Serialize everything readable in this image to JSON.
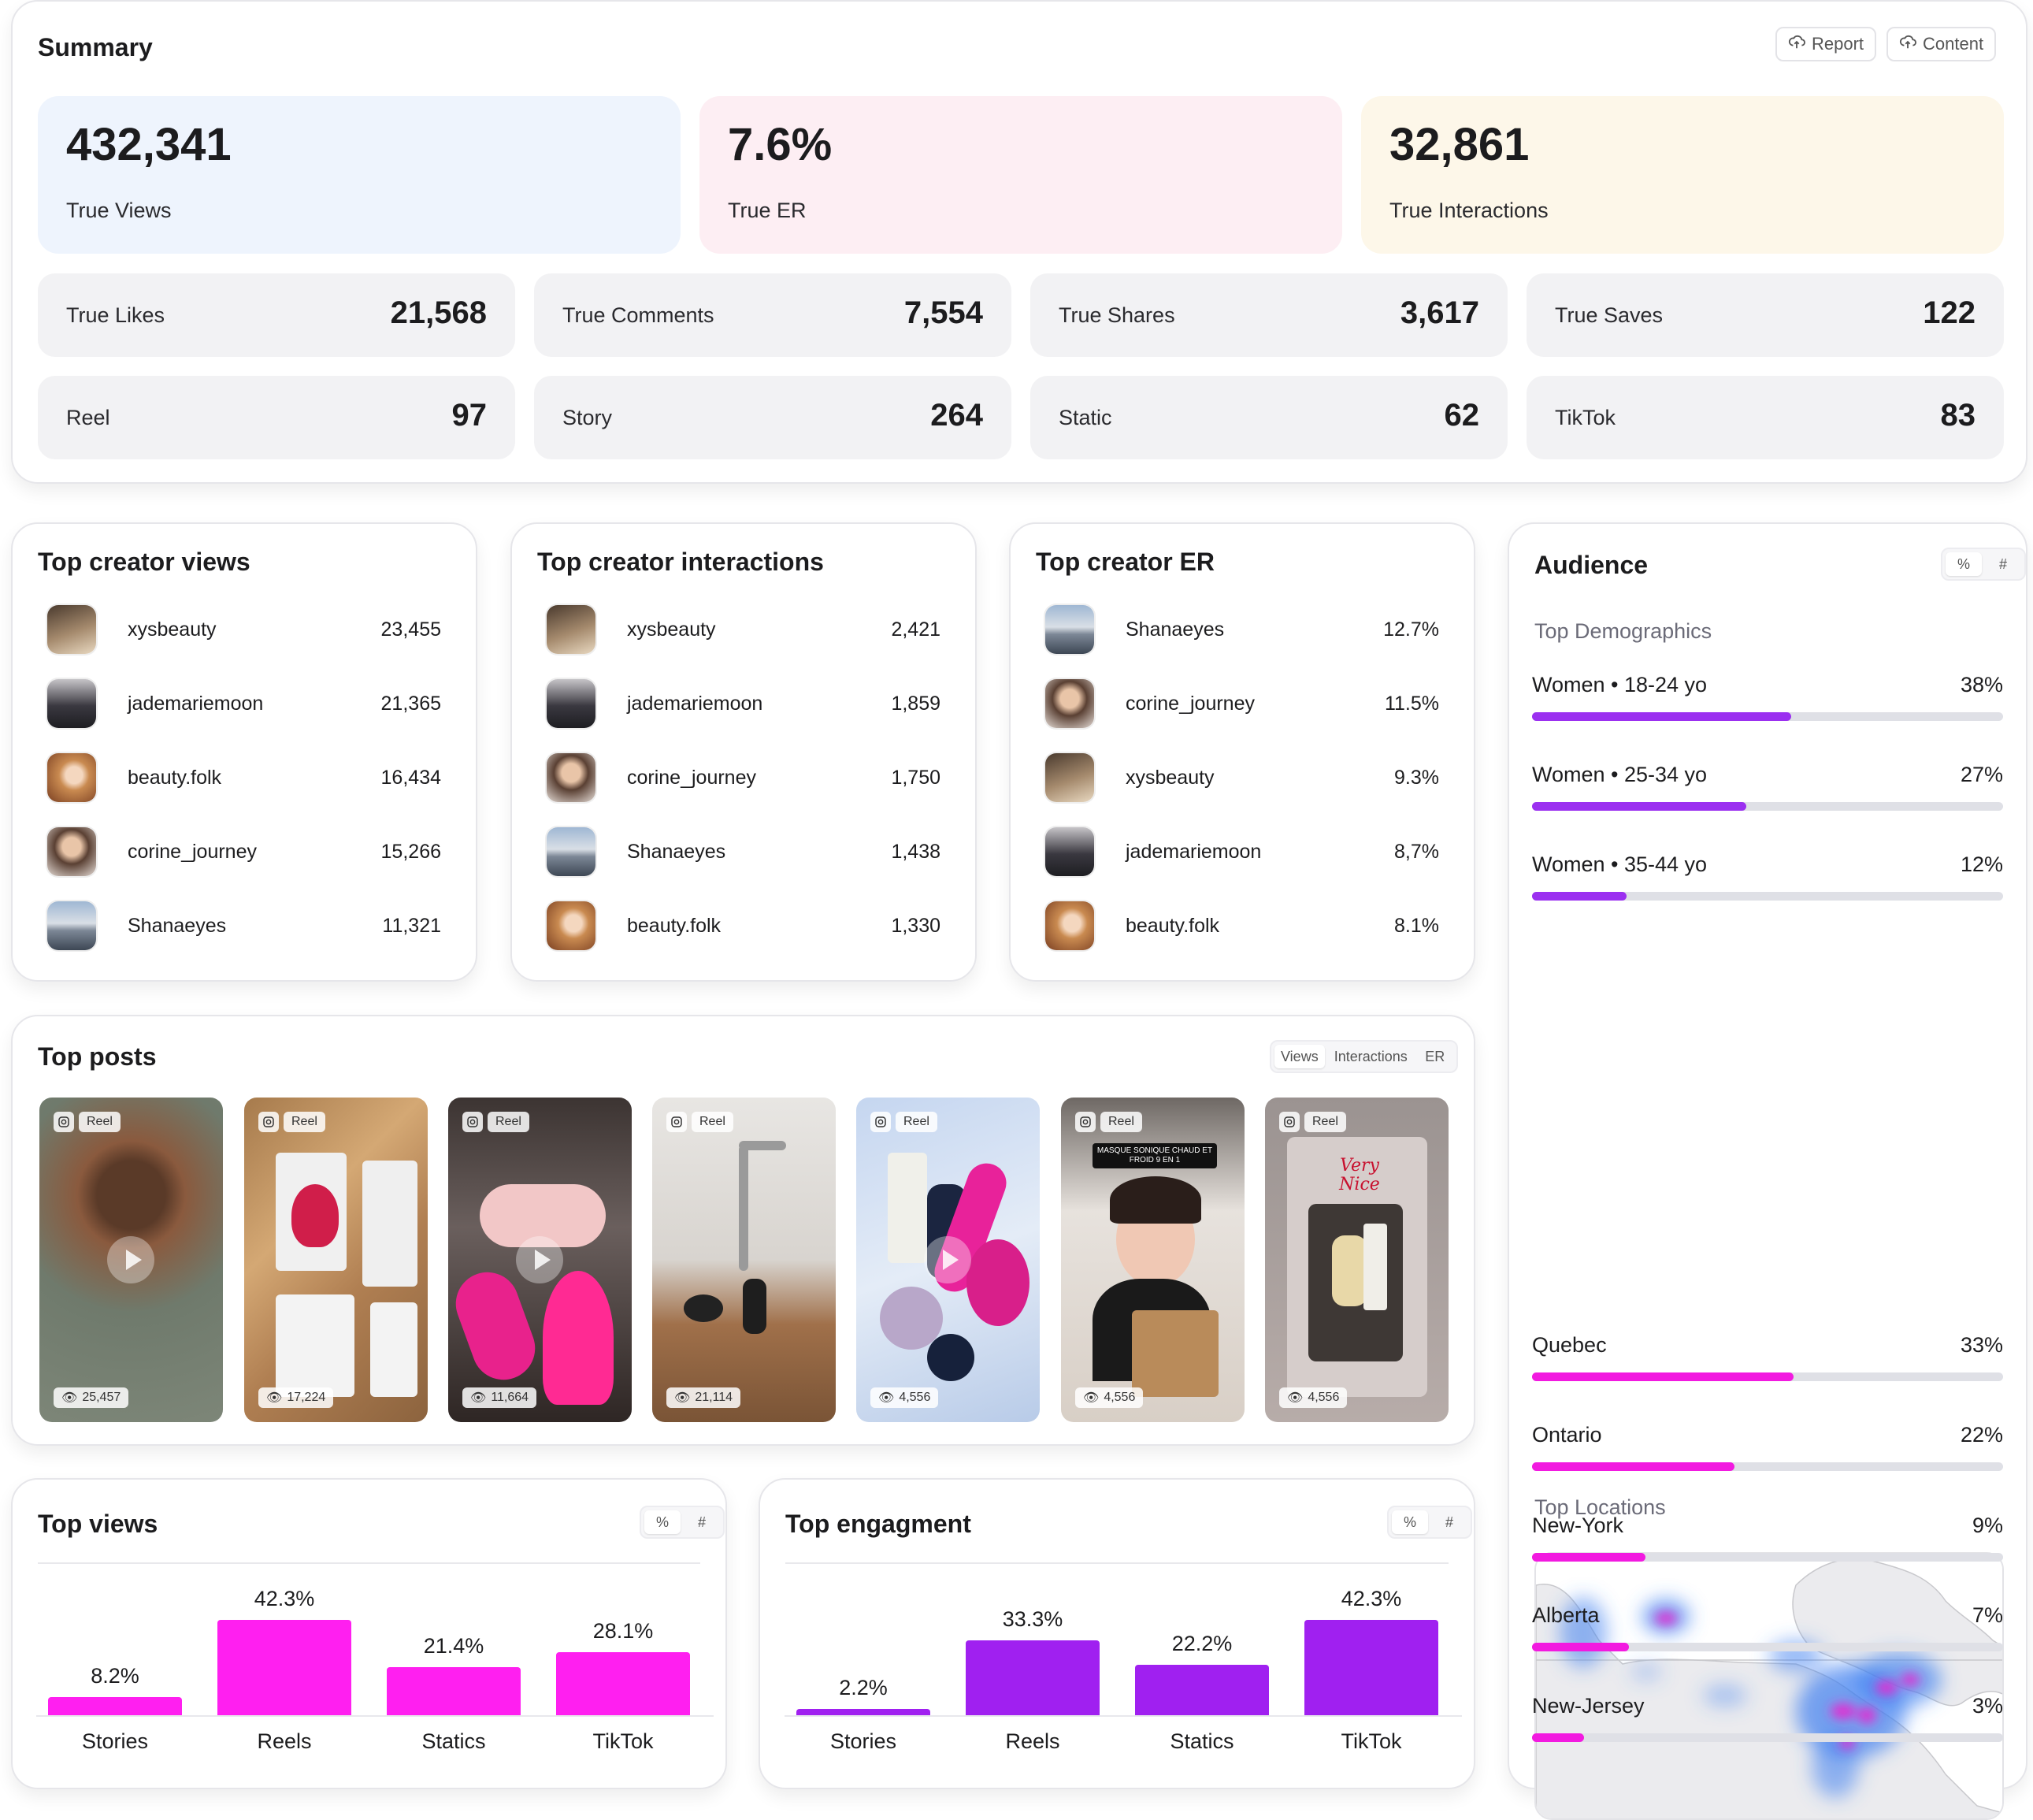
{
  "summary": {
    "title": "Summary",
    "report_label": "Report",
    "content_label": "Content",
    "heroes": [
      {
        "value": "432,341",
        "label": "True Views",
        "bg": "#eef4fd"
      },
      {
        "value": "7.6%",
        "label": "True ER",
        "bg": "#fdeef3"
      },
      {
        "value": "32,861",
        "label": "True Interactions",
        "bg": "#fdf7e9"
      }
    ],
    "stats": [
      {
        "label": "True Likes",
        "value": "21,568"
      },
      {
        "label": "True Comments",
        "value": "7,554"
      },
      {
        "label": "True Shares",
        "value": "3,617"
      },
      {
        "label": "True Saves",
        "value": "122"
      },
      {
        "label": "Reel",
        "value": "97"
      },
      {
        "label": "Story",
        "value": "264"
      },
      {
        "label": "Static",
        "value": "62"
      },
      {
        "label": "TikTok",
        "value": "83"
      }
    ]
  },
  "top_views": {
    "title": "Top creator views",
    "rows": [
      {
        "name": "xysbeauty",
        "value": "23,455"
      },
      {
        "name": "jademariemoon",
        "value": "21,365"
      },
      {
        "name": "beauty.folk",
        "value": "16,434"
      },
      {
        "name": "corine_journey",
        "value": "15,266"
      },
      {
        "name": "Shanaeyes",
        "value": "11,321"
      }
    ]
  },
  "top_interactions": {
    "title": "Top creator interactions",
    "rows": [
      {
        "name": "xysbeauty",
        "value": "2,421"
      },
      {
        "name": "jademariemoon",
        "value": "1,859"
      },
      {
        "name": "corine_journey",
        "value": "1,750"
      },
      {
        "name": "Shanaeyes",
        "value": "1,438"
      },
      {
        "name": "beauty.folk",
        "value": "1,330"
      }
    ]
  },
  "top_er": {
    "title": "Top creator ER",
    "rows": [
      {
        "name": "Shanaeyes",
        "value": "12.7%"
      },
      {
        "name": "corine_journey",
        "value": "11.5%"
      },
      {
        "name": "xysbeauty",
        "value": "9.3%"
      },
      {
        "name": "jademariemoon",
        "value": "8,7%"
      },
      {
        "name": "beauty.folk",
        "value": "8.1%"
      }
    ]
  },
  "top_posts": {
    "title": "Top posts",
    "tabs": [
      "Views",
      "Interactions",
      "ER"
    ],
    "posts": [
      {
        "type": "Reel",
        "views": "25,457"
      },
      {
        "type": "Reel",
        "views": "17,224"
      },
      {
        "type": "Reel",
        "views": "11,664"
      },
      {
        "type": "Reel",
        "views": "21,114"
      },
      {
        "type": "Reel",
        "views": "4,556"
      },
      {
        "type": "Reel",
        "views": "4,556",
        "caption": "MASQUE SONIQUE CHAUD ET FROID 9 EN 1"
      },
      {
        "type": "Reel",
        "views": "4,556",
        "caption": "Very Nice"
      }
    ]
  },
  "audience": {
    "title": "Audience",
    "toggle": [
      "%",
      "#"
    ],
    "demographics_label": "Top Demographics",
    "demographics": [
      {
        "label": "Women • 18-24 yo",
        "pct": "38%",
        "fraction": 0.55
      },
      {
        "label": "Women • 25-34 yo",
        "pct": "27%",
        "fraction": 0.455
      },
      {
        "label": "Women • 35-44  yo",
        "pct": "12%",
        "fraction": 0.2
      }
    ],
    "locations_label": "Top Locations",
    "locations": [
      {
        "label": "Quebec",
        "pct": "33%",
        "fraction": 0.555
      },
      {
        "label": "Ontario",
        "pct": "22%",
        "fraction": 0.43
      },
      {
        "label": "New-York",
        "pct": "9%",
        "fraction": 0.24
      },
      {
        "label": "Alberta",
        "pct": "7%",
        "fraction": 0.205
      },
      {
        "label": "New-Jersey",
        "pct": "3%",
        "fraction": 0.11
      }
    ],
    "colors": {
      "demographics": "#9b30f0",
      "locations": "#f21ae0",
      "track": "#dfe0e6"
    }
  },
  "top_views_chart": {
    "title": "Top views",
    "toggle": [
      "%",
      "#"
    ]
  },
  "top_engagement_chart": {
    "title": "Top engagment",
    "toggle": [
      "%",
      "#"
    ]
  },
  "chart_data": [
    {
      "type": "bar",
      "title": "Top views",
      "categories": [
        "Stories",
        "Reels",
        "Statics",
        "TikTok"
      ],
      "values": [
        8.2,
        42.3,
        21.4,
        28.1
      ],
      "value_labels": [
        "8.2%",
        "42.3%",
        "21.4%",
        "28.1%"
      ],
      "color": "#ff1ff0",
      "ylim": [
        0,
        42.3
      ],
      "grid": false
    },
    {
      "type": "bar",
      "title": "Top engagment",
      "categories": [
        "Stories",
        "Reels",
        "Statics",
        "TikTok"
      ],
      "values": [
        2.2,
        33.3,
        22.2,
        42.3
      ],
      "value_labels": [
        "2.2%",
        "33.3%",
        "22.2%",
        "42.3%"
      ],
      "color": "#a020f0",
      "ylim": [
        0,
        42.3
      ],
      "grid": false
    }
  ]
}
